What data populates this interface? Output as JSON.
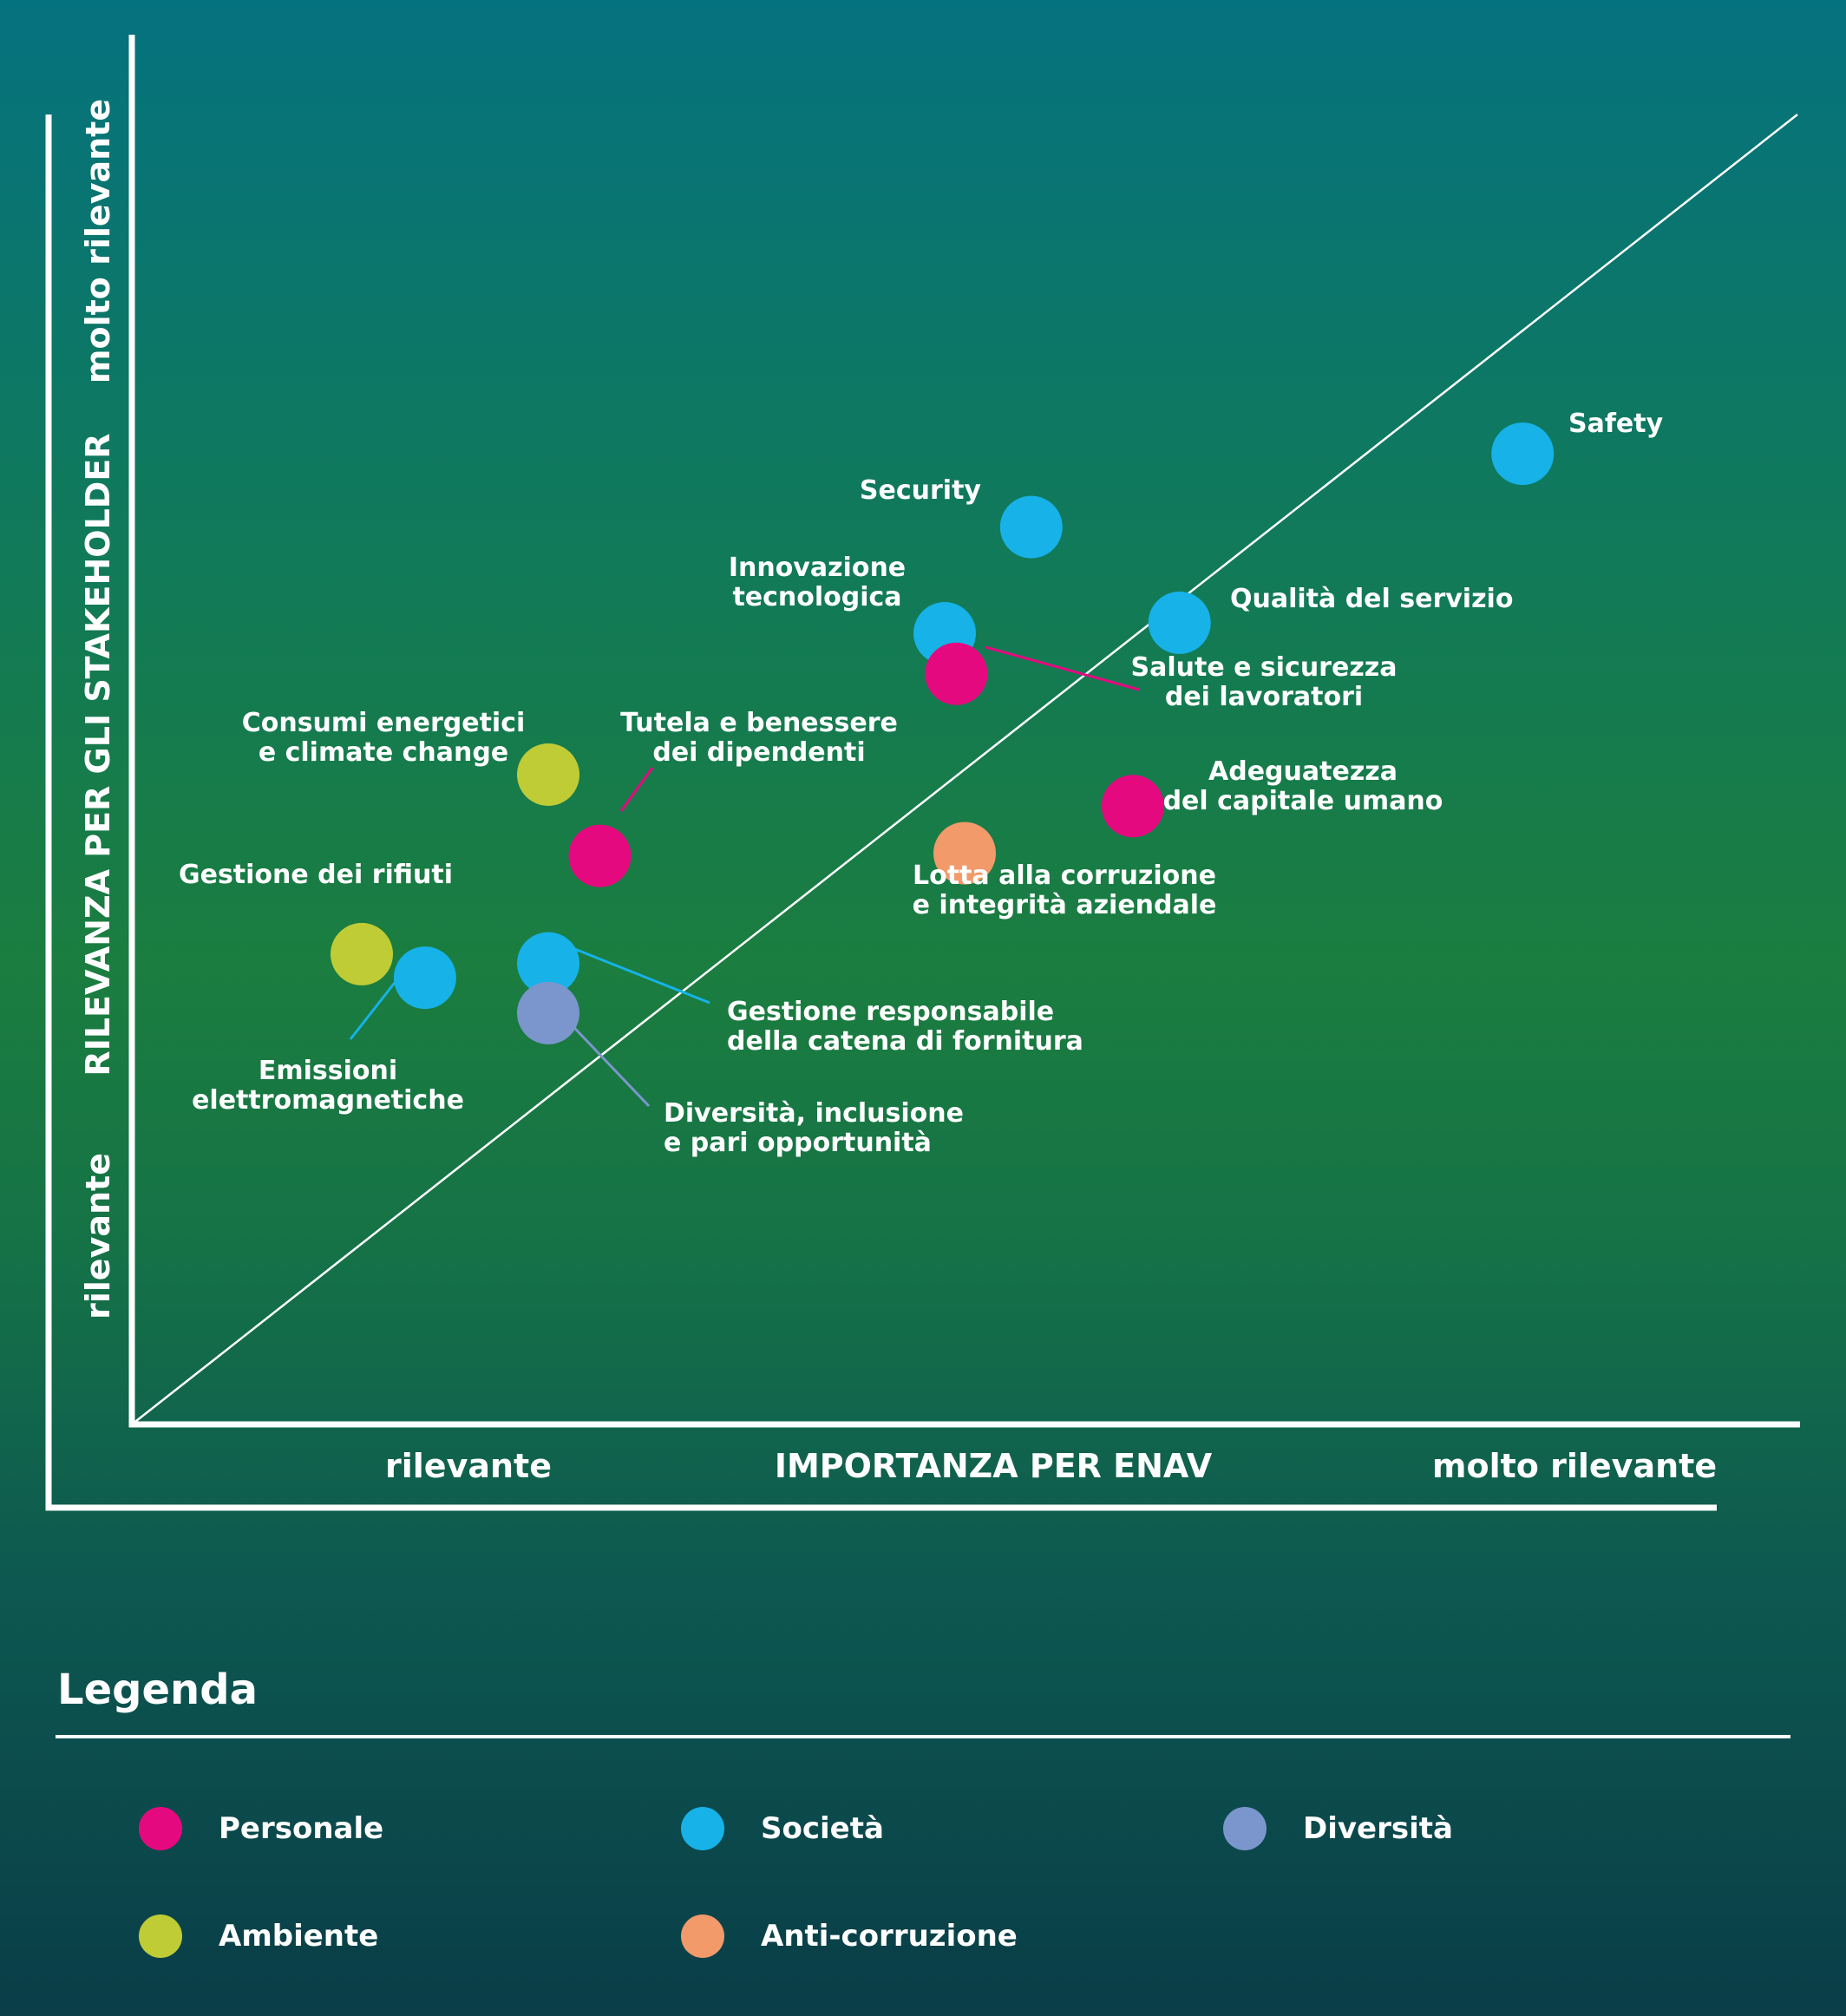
{
  "colors": {
    "Personale": "#e5097f",
    "Società": "#16b2e8",
    "Diversità": "#7b96cc",
    "Ambiente": "#bfcc35",
    "Anti-corruzione": "#f29a6a"
  },
  "chart_data": {
    "type": "scatter",
    "title": "",
    "xlabel": "IMPORTANZA PER ENAV",
    "ylabel": "RILEVANZA PER GLI STAKEHOLDER",
    "x_ticks": [
      "rilevante",
      "molto rilevante"
    ],
    "y_ticks": [
      "rilevante",
      "molto rilevante"
    ],
    "xlim": [
      0,
      100
    ],
    "ylim": [
      0,
      100
    ],
    "diagonal": true,
    "grid": false,
    "points": [
      {
        "label": "Safety",
        "category": "Società",
        "x": 83.5,
        "y": 74.1
      },
      {
        "label": "Security",
        "category": "Società",
        "x": 54,
        "y": 68.5
      },
      {
        "label": "Qualità del servizio",
        "category": "Società",
        "x": 62.9,
        "y": 61.2
      },
      {
        "label": "Innovazione tecnologica",
        "category": "Società",
        "x": 48.8,
        "y": 60.4
      },
      {
        "label": "Salute e sicurezza dei lavoratori",
        "category": "Personale",
        "x": 49.5,
        "y": 57.3
      },
      {
        "label": "Adeguatezza del capitale umano",
        "category": "Personale",
        "x": 60.1,
        "y": 47.2
      },
      {
        "label": "Lotta alla corruzione e integrità aziendale",
        "category": "Anti-corruzione",
        "x": 50,
        "y": 43.6
      },
      {
        "label": "Consumi energetici e climate change",
        "category": "Ambiente",
        "x": 25,
        "y": 49.6
      },
      {
        "label": "Tutela e benessere dei dipendenti",
        "category": "Personale",
        "x": 28.1,
        "y": 43.4
      },
      {
        "label": "Gestione dei rifiuti",
        "category": "Ambiente",
        "x": 13.8,
        "y": 35.9
      },
      {
        "label": "Emissioni elettromagnetiche",
        "category": "Società",
        "x": 17.6,
        "y": 34.1
      },
      {
        "label": "Gestione responsabile della catena di fornitura",
        "category": "Società",
        "x": 25,
        "y": 35.2
      },
      {
        "label": "Diversità, inclusione e pari opportunità",
        "category": "Diversità",
        "x": 25,
        "y": 31.4
      }
    ]
  },
  "label_lines": [
    [
      "Safety"
    ],
    [
      "Security"
    ],
    [
      "Qualità del servizio"
    ],
    [
      "Innovazione",
      "tecnologica"
    ],
    [
      "Salute e sicurezza",
      "dei lavoratori"
    ],
    [
      "Adeguatezza",
      "del capitale umano"
    ],
    [
      "Lotta alla corruzione",
      "e integrità aziendale"
    ],
    [
      "Consumi energetici",
      "e climate change"
    ],
    [
      "Tutela e benessere",
      "dei dipendenti"
    ],
    [
      "Gestione dei rifiuti"
    ],
    [
      "Emissioni",
      "elettromagnetiche"
    ],
    [
      "Gestione responsabile",
      "della catena di fornitura"
    ],
    [
      "Diversità, inclusione",
      "e pari opportunità"
    ]
  ],
  "legend": {
    "title": "Legenda",
    "items": [
      {
        "label": "Personale",
        "color": "#e5097f"
      },
      {
        "label": "Società",
        "color": "#16b2e8"
      },
      {
        "label": "Diversità",
        "color": "#7b96cc"
      },
      {
        "label": "Ambiente",
        "color": "#bfcc35"
      },
      {
        "label": "Anti-corruzione",
        "color": "#f29a6a"
      }
    ]
  }
}
